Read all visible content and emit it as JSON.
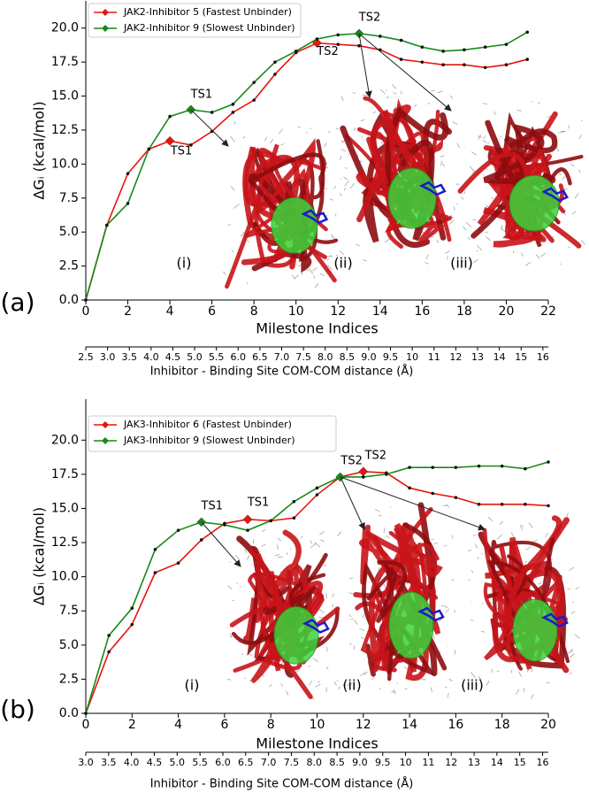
{
  "chart_data": [
    {
      "type": "line",
      "panel_label": "(a)",
      "x_label": "Milestone Indices",
      "y_label": "ΔGᵢ (kcal/mol)",
      "x2_label": "Inhibitor - Binding Site COM-COM distance (Å)",
      "x2_ticklabels": [
        "2.5",
        "3.0",
        "3.5",
        "4.0",
        "4.5",
        "5.0",
        "5.5",
        "6.0",
        "6.5",
        "7.0",
        "7.5",
        "8.0",
        "8.5",
        "9.0",
        "9.5",
        "10",
        "11",
        "12",
        "13",
        "14",
        "15",
        "16"
      ],
      "x": [
        0,
        1,
        2,
        3,
        4,
        5,
        6,
        7,
        8,
        9,
        10,
        11,
        12,
        13,
        14,
        15,
        16,
        17,
        18,
        19,
        20,
        21
      ],
      "xlim": [
        0,
        22
      ],
      "xticks": [
        0,
        2,
        4,
        6,
        8,
        10,
        12,
        14,
        16,
        18,
        20,
        22
      ],
      "ylim": [
        0,
        22
      ],
      "yticks": [
        {
          "value": 0,
          "label": "0.0"
        },
        2.5,
        {
          "value": 5,
          "label": "5.0"
        },
        7.5,
        {
          "value": 10,
          "label": "10.0"
        },
        12.5,
        {
          "value": 15,
          "label": "15.0"
        },
        17.5,
        {
          "value": 20,
          "label": "20.0"
        }
      ],
      "legend": "upper left",
      "image_labels": [
        "(i)",
        "(ii)",
        "(iii)"
      ],
      "series": [
        {
          "name": "JAK2-Inhibitor 5 (Fastest Unbinder)",
          "color": "#e8140f",
          "values": [
            0,
            5.5,
            9.3,
            11.1,
            11.7,
            11.4,
            12.4,
            13.8,
            14.7,
            16.6,
            18.2,
            18.9,
            18.8,
            18.7,
            18.4,
            17.7,
            17.5,
            17.3,
            17.3,
            17.1,
            17.3,
            17.7
          ],
          "transition_states": [
            {
              "label": "TS1",
              "index": 4
            },
            {
              "label": "TS2",
              "index": 11
            }
          ]
        },
        {
          "name": "JAK2-Inhibitor 9 (Slowest Unbinder)",
          "color": "#178a17",
          "values": [
            0,
            5.5,
            7.1,
            11.1,
            13.5,
            14.0,
            13.8,
            14.4,
            16.0,
            17.5,
            18.3,
            19.2,
            19.5,
            19.6,
            19.4,
            19.1,
            18.6,
            18.3,
            18.4,
            18.6,
            18.8,
            19.7
          ],
          "transition_states": [
            {
              "label": "TS1",
              "index": 5
            },
            {
              "label": "TS2",
              "index": 13
            }
          ]
        }
      ]
    },
    {
      "type": "line",
      "panel_label": "(b)",
      "x_label": "Milestone Indices",
      "y_label": "ΔGᵢ (kcal/mol)",
      "x2_label": "Inhibitor - Binding Site COM-COM distance (Å)",
      "x2_ticklabels": [
        "3.0",
        "3.5",
        "4.0",
        "4.5",
        "5.0",
        "5.5",
        "6.0",
        "6.5",
        "7.0",
        "7.5",
        "8.0",
        "8.5",
        "9.0",
        "9.5",
        "10",
        "11",
        "12",
        "13",
        "14",
        "15",
        "16"
      ],
      "x": [
        0,
        1,
        2,
        3,
        4,
        5,
        6,
        7,
        8,
        9,
        10,
        11,
        12,
        13,
        14,
        15,
        16,
        17,
        18,
        19,
        20
      ],
      "xlim": [
        0,
        20
      ],
      "xticks": [
        0,
        2,
        4,
        6,
        8,
        10,
        12,
        14,
        16,
        18,
        20
      ],
      "ylim": [
        0,
        23
      ],
      "yticks": [
        {
          "value": 0,
          "label": "0.0"
        },
        2.5,
        {
          "value": 5,
          "label": "5.0"
        },
        7.5,
        {
          "value": 10,
          "label": "10.0"
        },
        12.5,
        {
          "value": 15,
          "label": "15.0"
        },
        17.5,
        {
          "value": 20,
          "label": "20.0"
        }
      ],
      "legend": "upper left",
      "image_labels": [
        "(i)",
        "(ii)",
        "(iii)"
      ],
      "series": [
        {
          "name": "JAK3-Inhibitor 6 (Fastest Unbinder)",
          "color": "#e8140f",
          "values": [
            0,
            4.5,
            6.5,
            10.3,
            11.0,
            12.7,
            13.9,
            14.2,
            14.1,
            14.3,
            16.0,
            17.3,
            17.7,
            17.6,
            16.5,
            16.1,
            15.8,
            15.3,
            15.3,
            15.3,
            15.2
          ],
          "transition_states": [
            {
              "label": "TS1",
              "index": 7
            },
            {
              "label": "TS2",
              "index": 12
            }
          ]
        },
        {
          "name": "JAK3-Inhibitor 9 (Slowest Unbinder)",
          "color": "#178a17",
          "values": [
            0,
            5.7,
            7.7,
            12.0,
            13.4,
            14.0,
            13.8,
            13.4,
            14.1,
            15.5,
            16.5,
            17.3,
            17.3,
            17.5,
            18.0,
            18.0,
            18.0,
            18.1,
            18.1,
            17.9,
            18.4
          ],
          "transition_states": [
            {
              "label": "TS1",
              "index": 5
            },
            {
              "label": "TS2",
              "index": 11
            }
          ]
        }
      ]
    }
  ]
}
